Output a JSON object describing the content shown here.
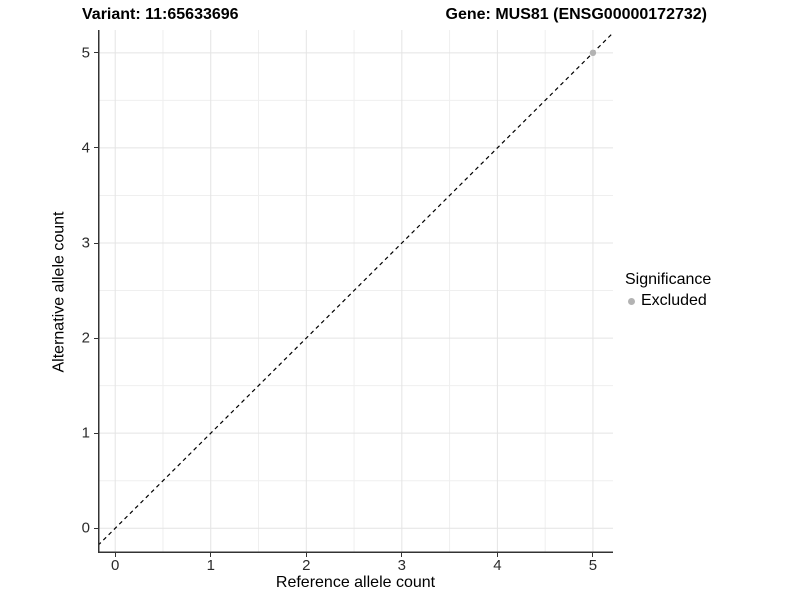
{
  "title": {
    "left": "Variant: 11:65633696",
    "right": "Gene: MUS81 (ENSG00000172732)"
  },
  "chart_data": {
    "type": "scatter",
    "title": "Variant: 11:65633696   Gene: MUS81 (ENSG00000172732)",
    "xlabel": "Reference allele count",
    "ylabel": "Alternative allele count",
    "xlim": [
      -0.18,
      5.21
    ],
    "ylim": [
      -0.26,
      5.24
    ],
    "x_ticks": [
      0,
      1,
      2,
      3,
      4,
      5
    ],
    "y_ticks": [
      0,
      1,
      2,
      3,
      4,
      5
    ],
    "minor_ticks": [
      0.5,
      1.5,
      2.5,
      3.5,
      4.5
    ],
    "grid": true,
    "reference_line": {
      "style": "dashed",
      "color": "#000000",
      "from": [
        -0.18,
        -0.18
      ],
      "to": [
        5.21,
        5.21
      ]
    },
    "series": [
      {
        "name": "Excluded",
        "color": "#b3b3b3",
        "points": [
          {
            "x": 5,
            "y": 5
          }
        ]
      }
    ],
    "legend": {
      "title": "Significance",
      "position": "right",
      "entries": [
        {
          "label": "Excluded",
          "color": "#b3b3b3"
        }
      ]
    }
  },
  "colors": {
    "major_grid": "#e4e4e4",
    "minor_grid": "#efefef",
    "axis_line": "#333333",
    "tick_label": "#2b2b2b",
    "point": "#b3b3b3"
  }
}
